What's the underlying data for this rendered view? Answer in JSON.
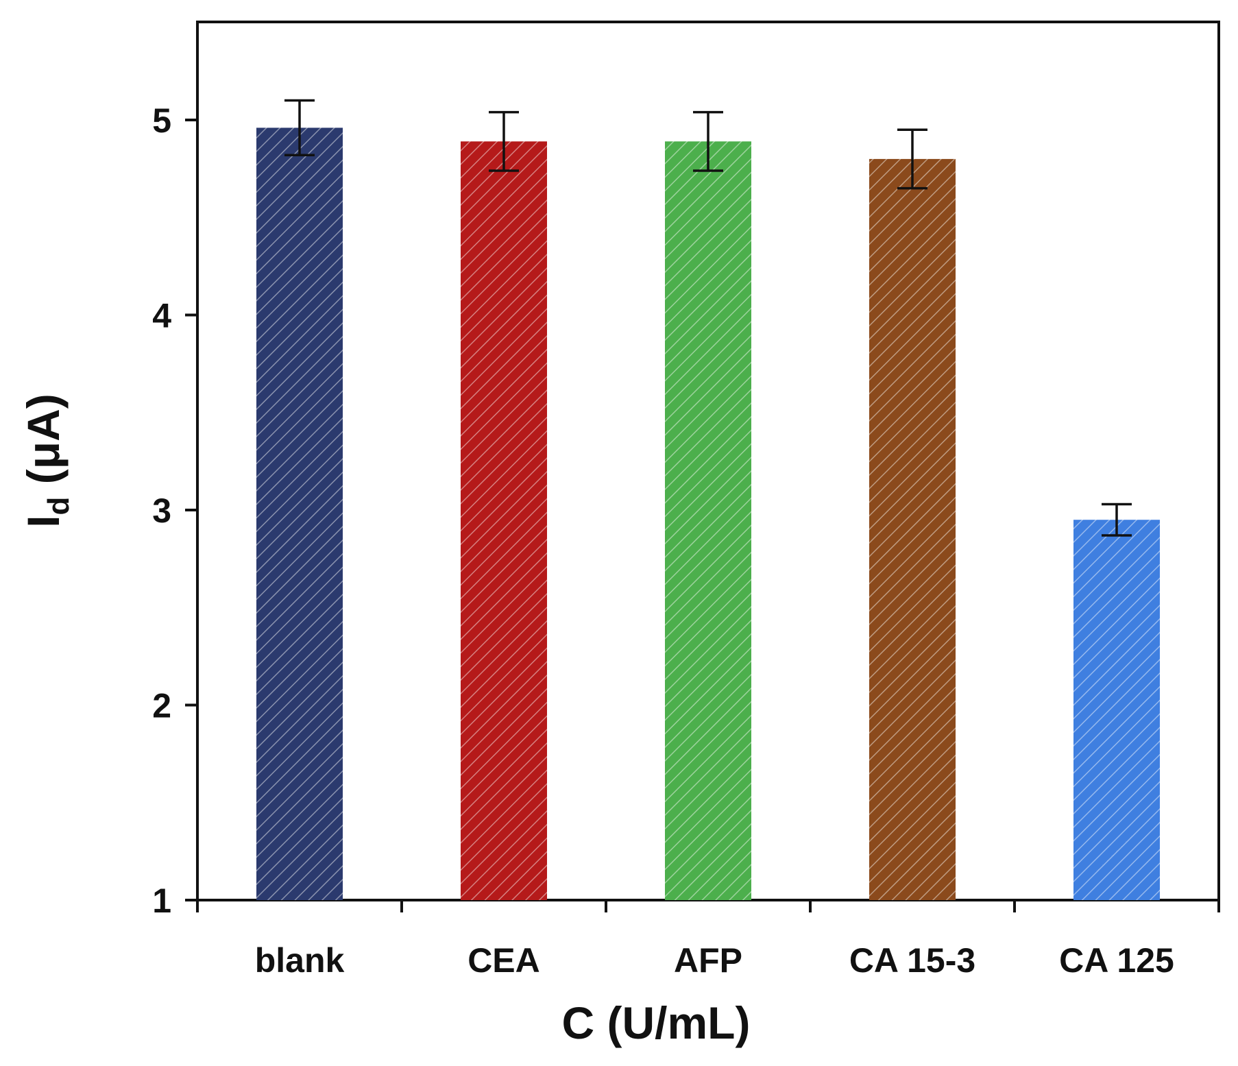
{
  "chart_data": {
    "type": "bar",
    "categories": [
      "blank",
      "CEA",
      "AFP",
      "CA 15-3",
      "CA 125"
    ],
    "values": [
      4.96,
      4.89,
      4.89,
      4.8,
      2.95
    ],
    "errors": [
      0.14,
      0.15,
      0.15,
      0.15,
      0.08
    ],
    "colors": [
      "#2b3a6e",
      "#b51a1a",
      "#4caf4c",
      "#8b4a1c",
      "#3f7fe0"
    ],
    "hatch_color": "#ffffff",
    "title": "",
    "xlabel": "C (U/mL)",
    "ylabel_main": "I",
    "ylabel_sub": "d",
    "ylabel_unit": " (μA)",
    "ylim": [
      1,
      5.5
    ],
    "yticks": [
      1,
      2,
      3,
      4,
      5
    ],
    "ytick_labels": [
      "1",
      "2",
      "3",
      "4",
      "5"
    ],
    "grid": false,
    "legend": "none"
  }
}
